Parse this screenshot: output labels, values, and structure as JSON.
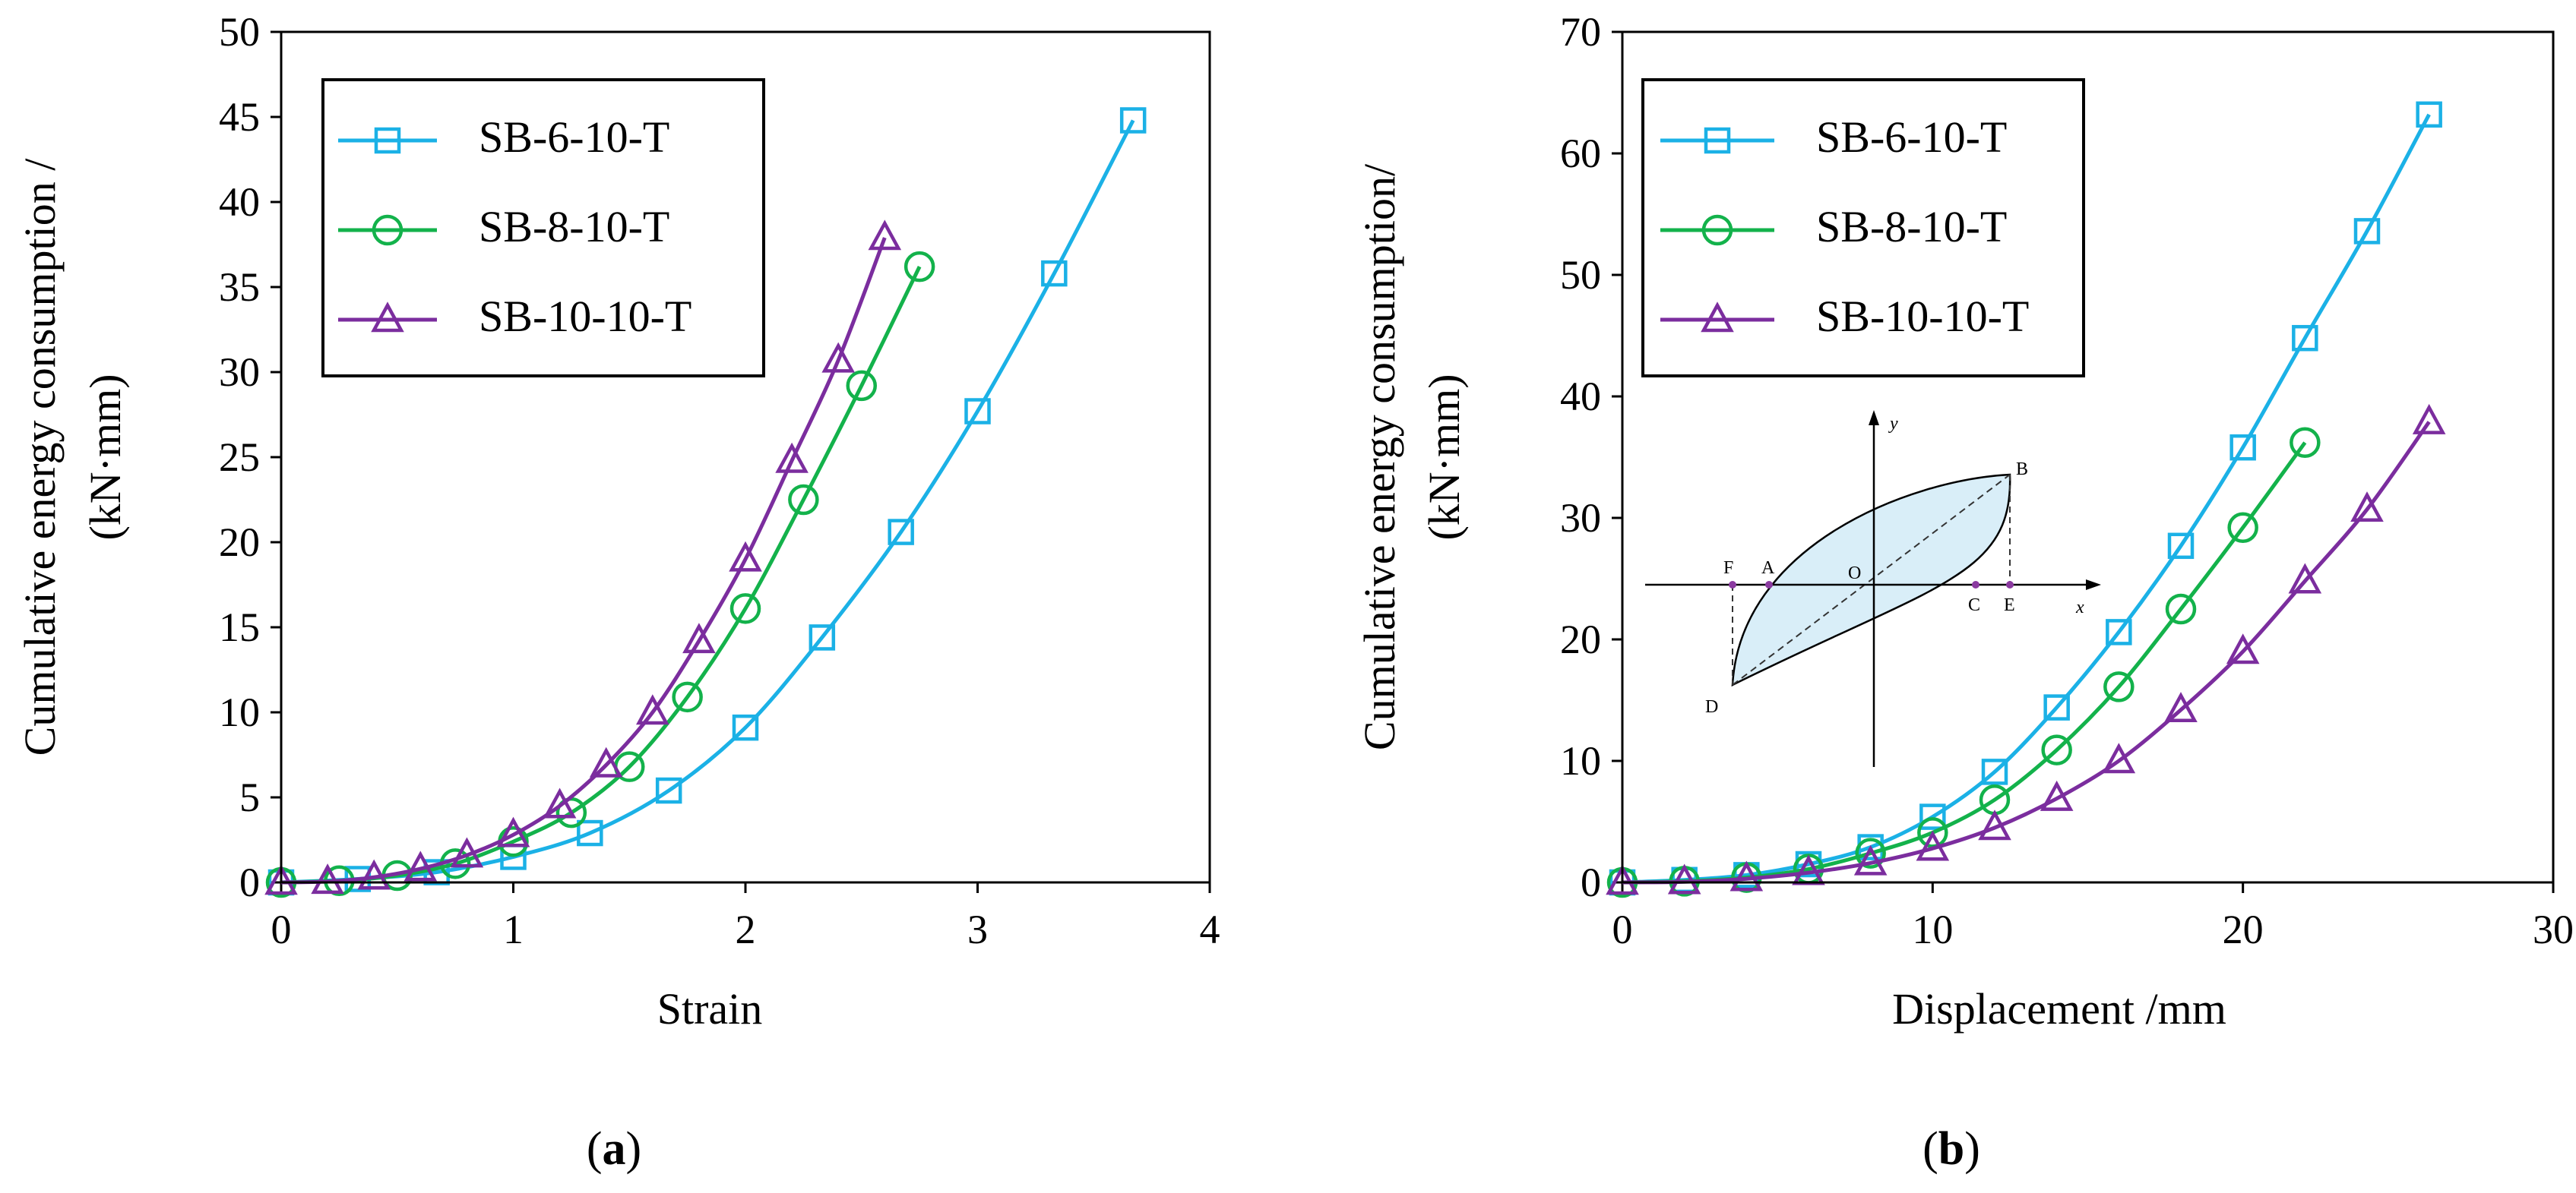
{
  "colors": {
    "s6": "#1bb1e6",
    "s8": "#13b24b",
    "s10": "#7b2d9e",
    "inset_fill": "#d9eef8",
    "inset_dot": "#8b3aa0"
  },
  "chart_data": [
    {
      "type": "line",
      "panel_label": "a",
      "xlabel": "Strain",
      "ylabel_line1": "Cumulative energy consumption /",
      "ylabel_line2": "(kN·mm)",
      "xlim": [
        0,
        4
      ],
      "ylim": [
        0,
        50
      ],
      "xticks": [
        "0",
        "1",
        "2",
        "3",
        "4"
      ],
      "yticks": [
        "0",
        "5",
        "10",
        "15",
        "20",
        "25",
        "30",
        "35",
        "40",
        "45",
        "50"
      ],
      "legend_position": "top-left",
      "series": [
        {
          "name": "SB-6-10-T",
          "color_key": "s6",
          "marker": "square",
          "x": [
            0,
            0.33,
            0.67,
            1.0,
            1.33,
            1.67,
            2.0,
            2.33,
            2.67,
            3.0,
            3.33,
            3.67
          ],
          "y": [
            0,
            0.2,
            0.6,
            1.5,
            2.9,
            5.4,
            9.1,
            14.4,
            20.6,
            27.7,
            35.8,
            44.8
          ]
        },
        {
          "name": "SB-8-10-T",
          "color_key": "s8",
          "marker": "circle",
          "x": [
            0,
            0.25,
            0.5,
            0.75,
            1.0,
            1.25,
            1.5,
            1.75,
            2.0,
            2.25,
            2.5,
            2.75
          ],
          "y": [
            0,
            0.1,
            0.4,
            1.1,
            2.4,
            4.1,
            6.8,
            10.9,
            16.1,
            22.5,
            29.2,
            36.2
          ]
        },
        {
          "name": "SB-10-10-T",
          "color_key": "s10",
          "marker": "triangle",
          "x": [
            0,
            0.2,
            0.4,
            0.6,
            0.8,
            1.0,
            1.2,
            1.4,
            1.6,
            1.8,
            2.0,
            2.2,
            2.4,
            2.6
          ],
          "y": [
            0,
            0.05,
            0.3,
            0.8,
            1.6,
            2.8,
            4.5,
            6.9,
            10.0,
            14.2,
            19.0,
            24.8,
            30.7,
            37.9
          ]
        }
      ]
    },
    {
      "type": "line",
      "panel_label": "b",
      "xlabel": "Displacement /mm",
      "ylabel_line1": "Cumulative energy consumption/",
      "ylabel_line2": "(kN·mm)",
      "xlim": [
        0,
        30
      ],
      "ylim": [
        0,
        70
      ],
      "xticks": [
        "0",
        "10",
        "20",
        "30"
      ],
      "yticks": [
        "0",
        "10",
        "20",
        "30",
        "40",
        "50",
        "60",
        "70"
      ],
      "legend_position": "top-left",
      "series": [
        {
          "name": "SB-6-10-T",
          "color_key": "s6",
          "marker": "square",
          "x": [
            0,
            2,
            4,
            6,
            8,
            10,
            12,
            14,
            16,
            18,
            20,
            22,
            24,
            26
          ],
          "y": [
            0,
            0.2,
            0.6,
            1.5,
            2.9,
            5.4,
            9.1,
            14.4,
            20.6,
            27.7,
            35.8,
            44.8,
            53.6,
            63.2
          ]
        },
        {
          "name": "SB-8-10-T",
          "color_key": "s8",
          "marker": "circle",
          "x": [
            0,
            2,
            4,
            6,
            8,
            10,
            12,
            14,
            16,
            18,
            20,
            22
          ],
          "y": [
            0,
            0.1,
            0.4,
            1.1,
            2.4,
            4.1,
            6.8,
            10.9,
            16.1,
            22.5,
            29.2,
            36.2
          ]
        },
        {
          "name": "SB-10-10-T",
          "color_key": "s10",
          "marker": "triangle",
          "x": [
            0,
            2,
            4,
            6,
            8,
            10,
            12,
            14,
            16,
            18,
            20,
            22,
            24,
            26
          ],
          "y": [
            0,
            0.05,
            0.3,
            0.8,
            1.6,
            2.8,
            4.5,
            6.9,
            10.0,
            14.2,
            19.0,
            24.8,
            30.7,
            37.9
          ]
        }
      ],
      "inset": {
        "axis_x": "x",
        "axis_y": "y",
        "points": [
          "O",
          "A",
          "B",
          "C",
          "D",
          "E",
          "F"
        ]
      }
    }
  ]
}
